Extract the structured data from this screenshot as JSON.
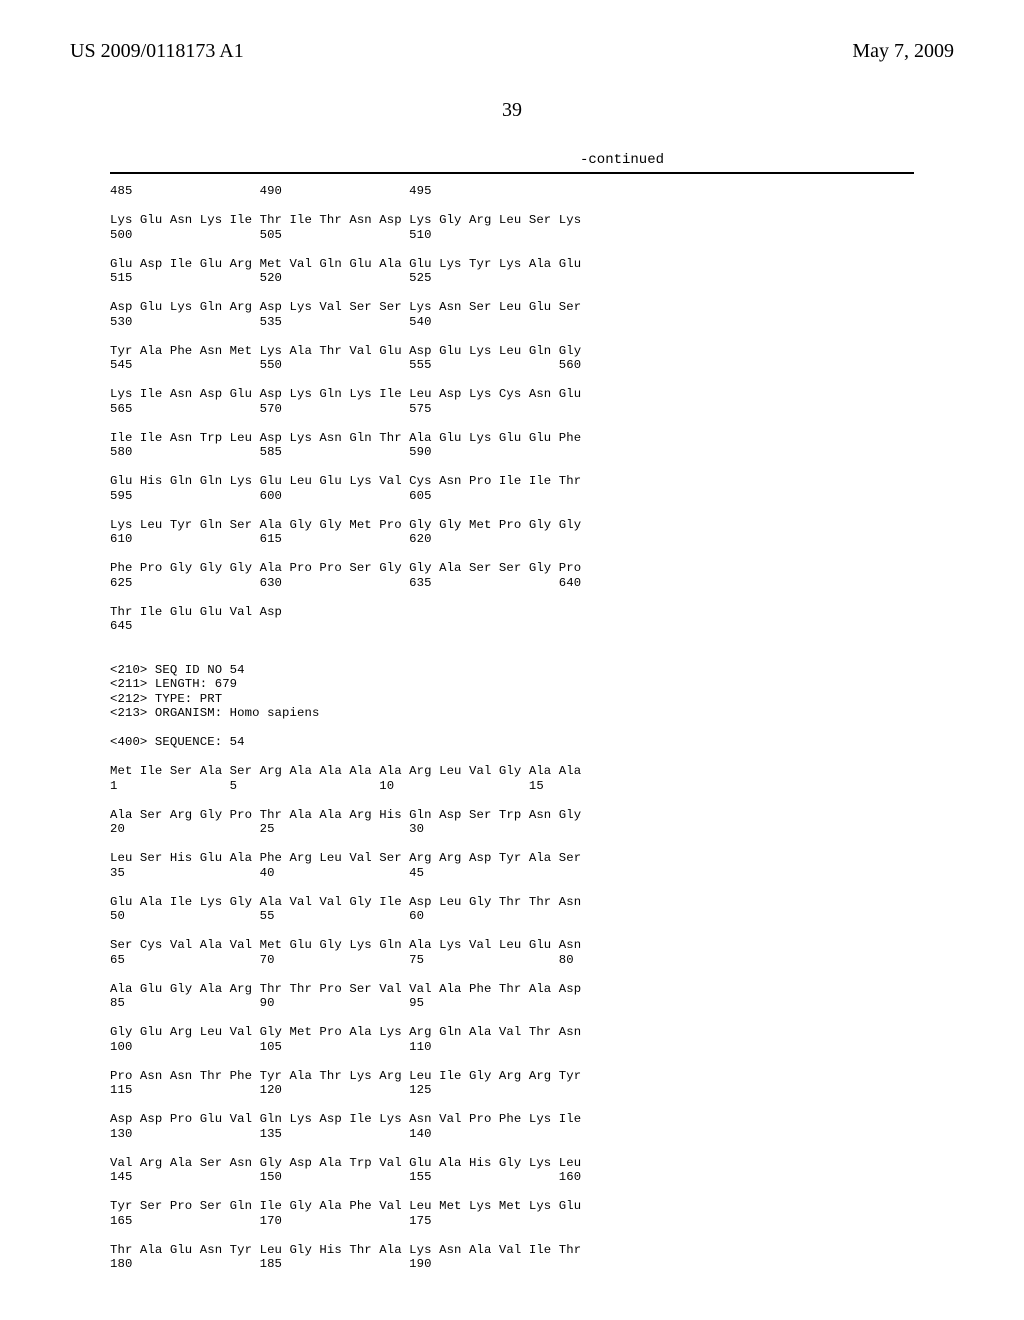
{
  "header": {
    "left": "US 2009/0118173 A1",
    "right": "May 7, 2009"
  },
  "pageNumber": "39",
  "continued": "-continued",
  "sequence": "485                 490                 495\n\nLys Glu Asn Lys Ile Thr Ile Thr Asn Asp Lys Gly Arg Leu Ser Lys\n500                 505                 510\n\nGlu Asp Ile Glu Arg Met Val Gln Glu Ala Glu Lys Tyr Lys Ala Glu\n515                 520                 525\n\nAsp Glu Lys Gln Arg Asp Lys Val Ser Ser Lys Asn Ser Leu Glu Ser\n530                 535                 540\n\nTyr Ala Phe Asn Met Lys Ala Thr Val Glu Asp Glu Lys Leu Gln Gly\n545                 550                 555                 560\n\nLys Ile Asn Asp Glu Asp Lys Gln Lys Ile Leu Asp Lys Cys Asn Glu\n565                 570                 575\n\nIle Ile Asn Trp Leu Asp Lys Asn Gln Thr Ala Glu Lys Glu Glu Phe\n580                 585                 590\n\nGlu His Gln Gln Lys Glu Leu Glu Lys Val Cys Asn Pro Ile Ile Thr\n595                 600                 605\n\nLys Leu Tyr Gln Ser Ala Gly Gly Met Pro Gly Gly Met Pro Gly Gly\n610                 615                 620\n\nPhe Pro Gly Gly Gly Ala Pro Pro Ser Gly Gly Ala Ser Ser Gly Pro\n625                 630                 635                 640\n\nThr Ile Glu Glu Val Asp\n645\n\n\n<210> SEQ ID NO 54\n<211> LENGTH: 679\n<212> TYPE: PRT\n<213> ORGANISM: Homo sapiens\n\n<400> SEQUENCE: 54\n\nMet Ile Ser Ala Ser Arg Ala Ala Ala Ala Arg Leu Val Gly Ala Ala\n1               5                   10                  15\n\nAla Ser Arg Gly Pro Thr Ala Ala Arg His Gln Asp Ser Trp Asn Gly\n20                  25                  30\n\nLeu Ser His Glu Ala Phe Arg Leu Val Ser Arg Arg Asp Tyr Ala Ser\n35                  40                  45\n\nGlu Ala Ile Lys Gly Ala Val Val Gly Ile Asp Leu Gly Thr Thr Asn\n50                  55                  60\n\nSer Cys Val Ala Val Met Glu Gly Lys Gln Ala Lys Val Leu Glu Asn\n65                  70                  75                  80\n\nAla Glu Gly Ala Arg Thr Thr Pro Ser Val Val Ala Phe Thr Ala Asp\n85                  90                  95\n\nGly Glu Arg Leu Val Gly Met Pro Ala Lys Arg Gln Ala Val Thr Asn\n100                 105                 110\n\nPro Asn Asn Thr Phe Tyr Ala Thr Lys Arg Leu Ile Gly Arg Arg Tyr\n115                 120                 125\n\nAsp Asp Pro Glu Val Gln Lys Asp Ile Lys Asn Val Pro Phe Lys Ile\n130                 135                 140\n\nVal Arg Ala Ser Asn Gly Asp Ala Trp Val Glu Ala His Gly Lys Leu\n145                 150                 155                 160\n\nTyr Ser Pro Ser Gln Ile Gly Ala Phe Val Leu Met Lys Met Lys Glu\n165                 170                 175\n\nThr Ala Glu Asn Tyr Leu Gly His Thr Ala Lys Asn Ala Val Ile Thr\n180                 185                 190"
}
